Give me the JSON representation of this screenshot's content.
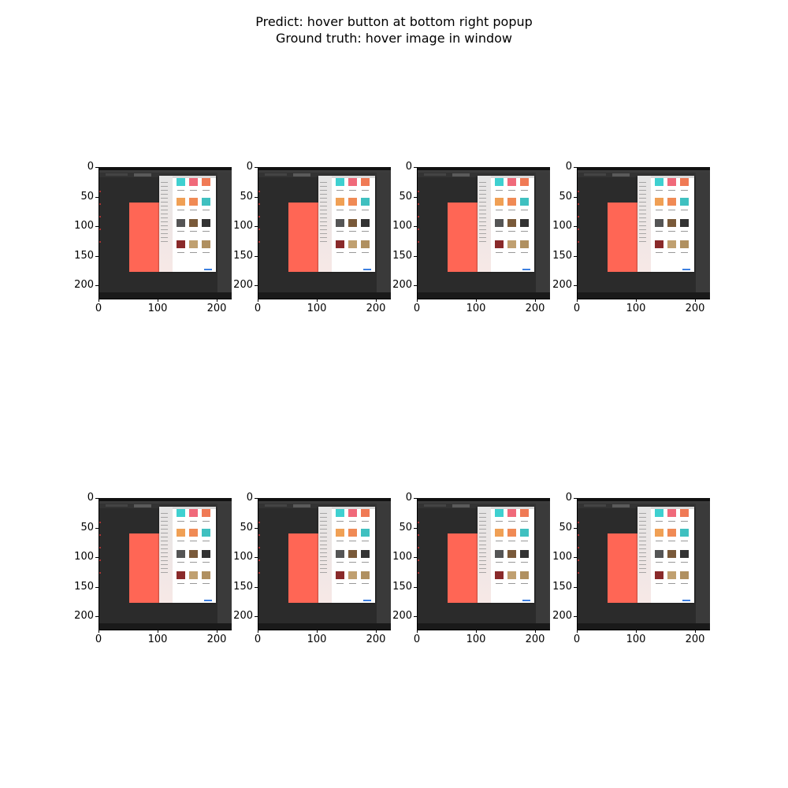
{
  "title": {
    "line1": "Predict: hover button at bottom right popup",
    "line2": "Ground truth: hover image in window"
  },
  "axes": {
    "y_ticks": [
      "0",
      "50",
      "100",
      "150",
      "200"
    ],
    "x_ticks": [
      "0",
      "100",
      "200"
    ]
  },
  "grid": {
    "rows": 2,
    "cols": 4
  },
  "colors": {
    "canvas_rect": "#ff6655",
    "workspace": "#2b2b2b",
    "popup_button": "#3d7fe0"
  }
}
